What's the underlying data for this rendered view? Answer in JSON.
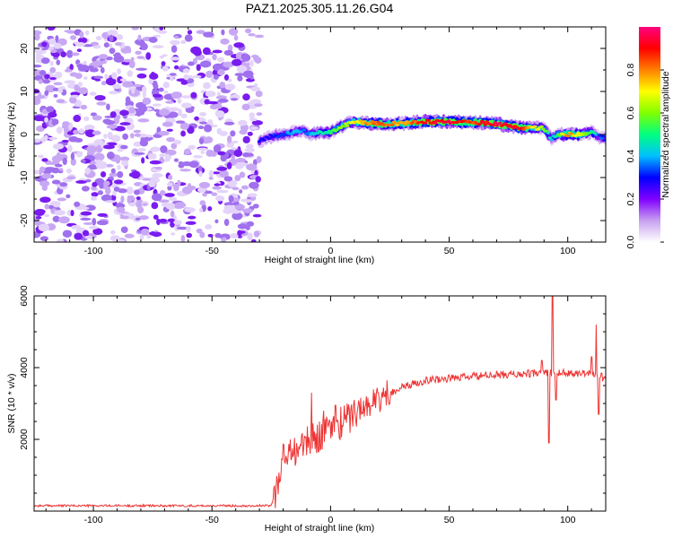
{
  "title": "PAZ1.2025.305.11.26.G04",
  "chart_data": [
    {
      "type": "heatmap",
      "name": "spectrogram",
      "xlabel": "Height of straight line (km)",
      "ylabel": "Frequency (Hz)",
      "xlim": [
        -125,
        116
      ],
      "ylim": [
        -25,
        25
      ],
      "xticks": [
        -100,
        -50,
        0,
        50,
        100
      ],
      "yticks": [
        -20,
        -10,
        0,
        10,
        20
      ],
      "colorbar": {
        "label": "Normalized spectral amplitude",
        "range": [
          0,
          1
        ],
        "ticks": [
          "0.0",
          "0.2",
          "0.4",
          "0.6",
          "0.8"
        ],
        "colors": [
          "#ffffff",
          "#c8a0f0",
          "#8000ff",
          "#0000ff",
          "#00c0ff",
          "#00ff80",
          "#80ff00",
          "#ffff00",
          "#ff8000",
          "#ff0000",
          "#ff0080"
        ]
      },
      "noise_region": {
        "x": [
          -125,
          -30
        ],
        "y": [
          -25,
          25
        ],
        "amplitude": 0.1
      },
      "ridge": [
        {
          "x": -30,
          "y": -1.5,
          "a": 0.25
        },
        {
          "x": -25,
          "y": -0.5,
          "a": 0.3
        },
        {
          "x": -20,
          "y": 0.0,
          "a": 0.35
        },
        {
          "x": -15,
          "y": 0.5,
          "a": 0.4
        },
        {
          "x": -12,
          "y": 1.0,
          "a": 0.35
        },
        {
          "x": -8,
          "y": 0.0,
          "a": 0.4
        },
        {
          "x": -5,
          "y": 0.5,
          "a": 0.45
        },
        {
          "x": 0,
          "y": 0.5,
          "a": 0.5
        },
        {
          "x": 5,
          "y": 2.0,
          "a": 0.6
        },
        {
          "x": 10,
          "y": 3.0,
          "a": 0.7
        },
        {
          "x": 20,
          "y": 2.5,
          "a": 0.85
        },
        {
          "x": 30,
          "y": 2.5,
          "a": 0.75
        },
        {
          "x": 40,
          "y": 3.0,
          "a": 0.9
        },
        {
          "x": 50,
          "y": 3.0,
          "a": 0.95
        },
        {
          "x": 60,
          "y": 2.8,
          "a": 0.85
        },
        {
          "x": 70,
          "y": 2.5,
          "a": 0.95
        },
        {
          "x": 80,
          "y": 1.5,
          "a": 0.9
        },
        {
          "x": 90,
          "y": 1.5,
          "a": 0.6
        },
        {
          "x": 93,
          "y": -1.0,
          "a": 0.4
        },
        {
          "x": 96,
          "y": 0.0,
          "a": 0.55
        },
        {
          "x": 100,
          "y": 0.0,
          "a": 0.8
        },
        {
          "x": 105,
          "y": 0.0,
          "a": 0.7
        },
        {
          "x": 110,
          "y": 0.5,
          "a": 0.5
        },
        {
          "x": 113,
          "y": -0.5,
          "a": 0.35
        },
        {
          "x": 116,
          "y": -1.0,
          "a": 0.3
        }
      ]
    },
    {
      "type": "line",
      "name": "snr",
      "xlabel": "Height of straight line (km)",
      "ylabel": "SNR (10 * v/v)",
      "xlim": [
        -125,
        116
      ],
      "ylim": [
        0,
        6000
      ],
      "xticks": [
        -100,
        -50,
        0,
        50,
        100
      ],
      "yticks": [
        2000,
        4000,
        6000
      ],
      "color": "#ee3333",
      "envelope": [
        [
          -125,
          150
        ],
        [
          -25,
          150
        ],
        [
          -23,
          600
        ],
        [
          -20,
          1500
        ],
        [
          -15,
          1700
        ],
        [
          -10,
          1900
        ],
        [
          -5,
          2100
        ],
        [
          0,
          2300
        ],
        [
          10,
          2700
        ],
        [
          15,
          2900
        ],
        [
          20,
          3100
        ],
        [
          25,
          3300
        ],
        [
          30,
          3450
        ],
        [
          35,
          3550
        ],
        [
          40,
          3650
        ],
        [
          50,
          3700
        ],
        [
          60,
          3750
        ],
        [
          70,
          3800
        ],
        [
          80,
          3820
        ],
        [
          90,
          3850
        ],
        [
          100,
          3850
        ],
        [
          110,
          3850
        ],
        [
          116,
          3700
        ]
      ],
      "spikes": [
        [
          -8,
          3300
        ],
        [
          -3,
          2800
        ],
        [
          2,
          2950
        ],
        [
          4,
          2000
        ],
        [
          7,
          3000
        ],
        [
          10,
          3100
        ],
        [
          12,
          3000
        ],
        [
          15,
          3200
        ],
        [
          20,
          3300
        ],
        [
          89,
          4200
        ],
        [
          92,
          1900
        ],
        [
          93.5,
          6000
        ],
        [
          95,
          3100
        ],
        [
          110,
          4300
        ],
        [
          112,
          5200
        ],
        [
          113,
          2700
        ]
      ]
    }
  ]
}
